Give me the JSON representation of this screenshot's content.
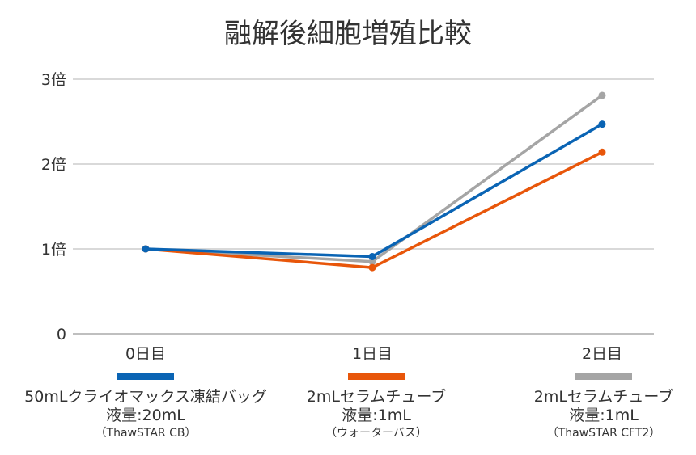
{
  "chart_data": {
    "type": "line",
    "title": "融解後細胞増殖比較",
    "categories": [
      "0日目",
      "1日目",
      "2日目"
    ],
    "yticks": [
      "0",
      "1倍",
      "2倍",
      "3倍"
    ],
    "ylim": [
      0,
      3
    ],
    "grid": true,
    "legend_position": "bottom",
    "series": [
      {
        "name": "50mLクライオマックス凍結バッグ",
        "sub1": "液量:20mL",
        "sub2": "（ThawSTAR CB）",
        "color": "#0a64b4",
        "values": [
          1.0,
          0.91,
          2.47
        ]
      },
      {
        "name": "2mLセラムチューブ",
        "sub1": "液量:1mL",
        "sub2": "（ウォーターバス）",
        "color": "#e8560a",
        "values": [
          1.0,
          0.78,
          2.14
        ]
      },
      {
        "name": "2mLセラムチューブ",
        "sub1": "液量:1mL",
        "sub2": "（ThawSTAR CFT2）",
        "color": "#a5a5a5",
        "values": [
          1.0,
          0.85,
          2.81
        ]
      }
    ]
  }
}
